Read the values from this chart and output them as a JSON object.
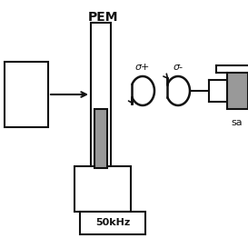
{
  "bg_color": "white",
  "title": "PEM",
  "label_50khz": "50kHz",
  "label_sa": "sa",
  "sigma_plus": "σ+",
  "sigma_minus": "σ-",
  "fig_width": 2.73,
  "fig_height": 2.73,
  "dpi": 100,
  "lw": 1.5,
  "dark": "#111111",
  "gray": "#999999",
  "light_gray": "#cccccc"
}
